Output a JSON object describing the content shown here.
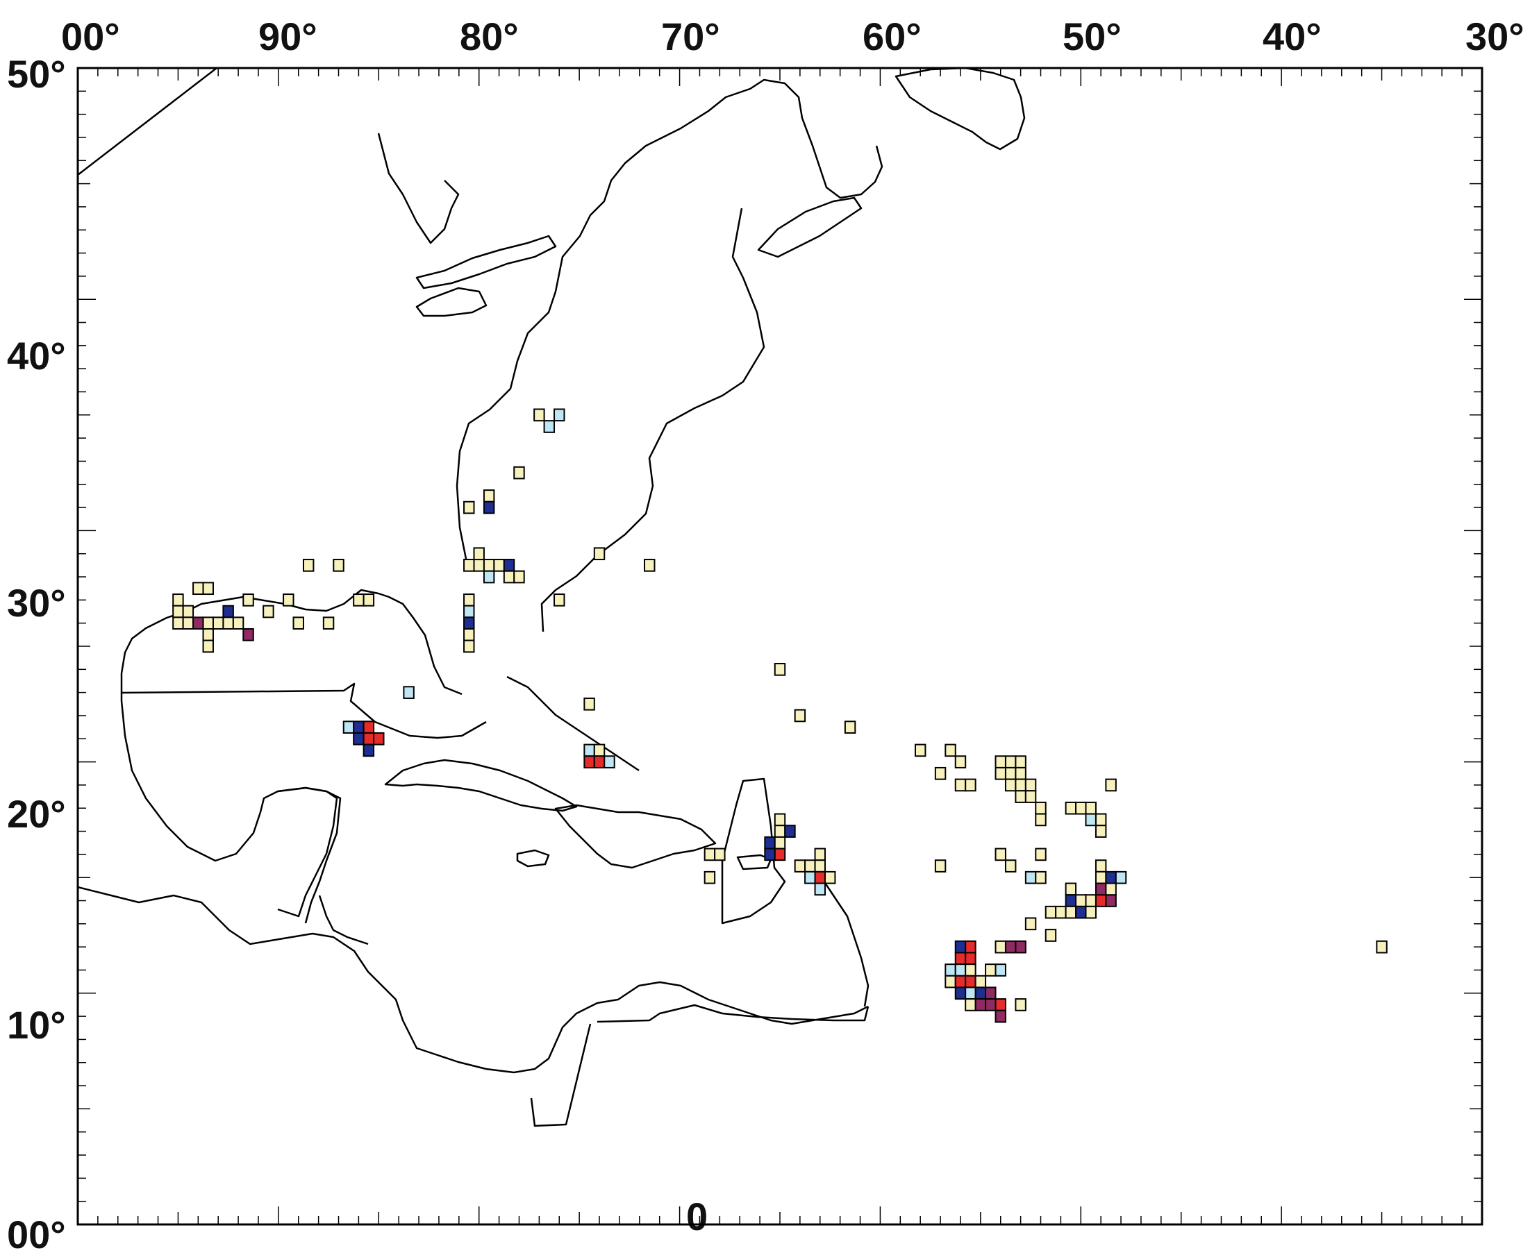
{
  "map": {
    "lon_range": [
      -100,
      -30
    ],
    "lat_range": [
      0,
      50
    ],
    "top_labels": [
      "00°",
      "90°",
      "80°",
      "70°",
      "60°",
      "50°",
      "40°",
      "30°"
    ],
    "left_labels": [
      "50°",
      "40°",
      "30°",
      "20°",
      "10°",
      "00°"
    ],
    "bottom_label": "0",
    "colors": {
      "cream": "#f7f1bd",
      "light_blue": "#bfe6f5",
      "dark_blue": "#1f2f91",
      "red": "#e62b2b",
      "purple": "#8f2a63",
      "outline": "#000000"
    },
    "cells": [
      {
        "lon": -77.0,
        "lat": 35.0,
        "c": "cream"
      },
      {
        "lon": -76.5,
        "lat": 34.5,
        "c": "light_blue"
      },
      {
        "lon": -76.0,
        "lat": 35.0,
        "c": "light_blue"
      },
      {
        "lon": -78.0,
        "lat": 32.5,
        "c": "cream"
      },
      {
        "lon": -79.5,
        "lat": 31.5,
        "c": "cream"
      },
      {
        "lon": -79.5,
        "lat": 31.0,
        "c": "dark_blue"
      },
      {
        "lon": -80.5,
        "lat": 31.0,
        "c": "cream"
      },
      {
        "lon": -80.5,
        "lat": 28.5,
        "c": "cream"
      },
      {
        "lon": -80.0,
        "lat": 28.5,
        "c": "cream"
      },
      {
        "lon": -79.5,
        "lat": 28.5,
        "c": "cream"
      },
      {
        "lon": -79.0,
        "lat": 28.5,
        "c": "cream"
      },
      {
        "lon": -78.5,
        "lat": 28.5,
        "c": "dark_blue"
      },
      {
        "lon": -80.0,
        "lat": 29.0,
        "c": "cream"
      },
      {
        "lon": -79.5,
        "lat": 28.0,
        "c": "light_blue"
      },
      {
        "lon": -78.5,
        "lat": 28.0,
        "c": "cream"
      },
      {
        "lon": -78.0,
        "lat": 28.0,
        "c": "cream"
      },
      {
        "lon": -74.0,
        "lat": 29.0,
        "c": "cream"
      },
      {
        "lon": -71.5,
        "lat": 28.5,
        "c": "cream"
      },
      {
        "lon": -76.0,
        "lat": 27.0,
        "c": "cream"
      },
      {
        "lon": -80.5,
        "lat": 27.0,
        "c": "cream"
      },
      {
        "lon": -80.5,
        "lat": 26.5,
        "c": "light_blue"
      },
      {
        "lon": -80.5,
        "lat": 26.0,
        "c": "dark_blue"
      },
      {
        "lon": -80.5,
        "lat": 25.5,
        "c": "cream"
      },
      {
        "lon": -80.5,
        "lat": 25.0,
        "c": "cream"
      },
      {
        "lon": -88.5,
        "lat": 28.5,
        "c": "cream"
      },
      {
        "lon": -87.0,
        "lat": 28.5,
        "c": "cream"
      },
      {
        "lon": -89.5,
        "lat": 27.0,
        "c": "cream"
      },
      {
        "lon": -86.0,
        "lat": 27.0,
        "c": "cream"
      },
      {
        "lon": -85.5,
        "lat": 27.0,
        "c": "cream"
      },
      {
        "lon": -90.5,
        "lat": 26.5,
        "c": "cream"
      },
      {
        "lon": -89.0,
        "lat": 26.0,
        "c": "cream"
      },
      {
        "lon": -87.5,
        "lat": 26.0,
        "c": "cream"
      },
      {
        "lon": -94.0,
        "lat": 27.5,
        "c": "cream"
      },
      {
        "lon": -93.5,
        "lat": 27.5,
        "c": "cream"
      },
      {
        "lon": -95.0,
        "lat": 27.0,
        "c": "cream"
      },
      {
        "lon": -91.5,
        "lat": 27.0,
        "c": "cream"
      },
      {
        "lon": -95.0,
        "lat": 26.5,
        "c": "cream"
      },
      {
        "lon": -94.5,
        "lat": 26.5,
        "c": "cream"
      },
      {
        "lon": -92.5,
        "lat": 26.5,
        "c": "dark_blue"
      },
      {
        "lon": -95.0,
        "lat": 26.0,
        "c": "cream"
      },
      {
        "lon": -94.5,
        "lat": 26.0,
        "c": "cream"
      },
      {
        "lon": -94.0,
        "lat": 26.0,
        "c": "purple"
      },
      {
        "lon": -93.5,
        "lat": 26.0,
        "c": "cream"
      },
      {
        "lon": -93.0,
        "lat": 26.0,
        "c": "cream"
      },
      {
        "lon": -92.5,
        "lat": 26.0,
        "c": "cream"
      },
      {
        "lon": -92.0,
        "lat": 26.0,
        "c": "cream"
      },
      {
        "lon": -93.5,
        "lat": 25.5,
        "c": "cream"
      },
      {
        "lon": -91.5,
        "lat": 25.5,
        "c": "purple"
      },
      {
        "lon": -93.5,
        "lat": 25.0,
        "c": "cream"
      },
      {
        "lon": -83.5,
        "lat": 23.0,
        "c": "light_blue"
      },
      {
        "lon": -86.5,
        "lat": 21.5,
        "c": "light_blue"
      },
      {
        "lon": -86.0,
        "lat": 21.5,
        "c": "dark_blue"
      },
      {
        "lon": -85.5,
        "lat": 21.5,
        "c": "red"
      },
      {
        "lon": -86.0,
        "lat": 21.0,
        "c": "dark_blue"
      },
      {
        "lon": -85.5,
        "lat": 21.0,
        "c": "red"
      },
      {
        "lon": -85.0,
        "lat": 21.0,
        "c": "red"
      },
      {
        "lon": -85.5,
        "lat": 20.5,
        "c": "dark_blue"
      },
      {
        "lon": -74.5,
        "lat": 22.5,
        "c": "cream"
      },
      {
        "lon": -74.5,
        "lat": 20.5,
        "c": "light_blue"
      },
      {
        "lon": -74.0,
        "lat": 20.5,
        "c": "cream"
      },
      {
        "lon": -74.5,
        "lat": 20.0,
        "c": "red"
      },
      {
        "lon": -74.0,
        "lat": 20.0,
        "c": "red"
      },
      {
        "lon": -73.5,
        "lat": 20.0,
        "c": "light_blue"
      },
      {
        "lon": -65.0,
        "lat": 24.0,
        "c": "cream"
      },
      {
        "lon": -64.0,
        "lat": 22.0,
        "c": "cream"
      },
      {
        "lon": -61.5,
        "lat": 21.5,
        "c": "cream"
      },
      {
        "lon": -68.5,
        "lat": 16.0,
        "c": "cream"
      },
      {
        "lon": -68.0,
        "lat": 16.0,
        "c": "cream"
      },
      {
        "lon": -68.5,
        "lat": 15.0,
        "c": "cream"
      },
      {
        "lon": -65.0,
        "lat": 17.5,
        "c": "cream"
      },
      {
        "lon": -65.0,
        "lat": 17.0,
        "c": "cream"
      },
      {
        "lon": -64.5,
        "lat": 17.0,
        "c": "dark_blue"
      },
      {
        "lon": -65.5,
        "lat": 16.5,
        "c": "dark_blue"
      },
      {
        "lon": -65.0,
        "lat": 16.5,
        "c": "cream"
      },
      {
        "lon": -65.5,
        "lat": 16.0,
        "c": "dark_blue"
      },
      {
        "lon": -65.0,
        "lat": 16.0,
        "c": "red"
      },
      {
        "lon": -63.0,
        "lat": 16.0,
        "c": "cream"
      },
      {
        "lon": -64.0,
        "lat": 15.5,
        "c": "cream"
      },
      {
        "lon": -63.5,
        "lat": 15.5,
        "c": "cream"
      },
      {
        "lon": -63.0,
        "lat": 15.5,
        "c": "cream"
      },
      {
        "lon": -63.5,
        "lat": 15.0,
        "c": "light_blue"
      },
      {
        "lon": -63.0,
        "lat": 15.0,
        "c": "red"
      },
      {
        "lon": -62.5,
        "lat": 15.0,
        "c": "cream"
      },
      {
        "lon": -63.0,
        "lat": 14.5,
        "c": "light_blue"
      },
      {
        "lon": -58.0,
        "lat": 20.5,
        "c": "cream"
      },
      {
        "lon": -56.5,
        "lat": 20.5,
        "c": "cream"
      },
      {
        "lon": -57.0,
        "lat": 19.5,
        "c": "cream"
      },
      {
        "lon": -56.0,
        "lat": 20.0,
        "c": "cream"
      },
      {
        "lon": -56.0,
        "lat": 19.0,
        "c": "cream"
      },
      {
        "lon": -55.5,
        "lat": 19.0,
        "c": "cream"
      },
      {
        "lon": -54.0,
        "lat": 20.0,
        "c": "cream"
      },
      {
        "lon": -53.5,
        "lat": 20.0,
        "c": "cream"
      },
      {
        "lon": -53.0,
        "lat": 20.0,
        "c": "cream"
      },
      {
        "lon": -54.0,
        "lat": 19.5,
        "c": "cream"
      },
      {
        "lon": -53.5,
        "lat": 19.5,
        "c": "cream"
      },
      {
        "lon": -53.0,
        "lat": 19.5,
        "c": "cream"
      },
      {
        "lon": -53.5,
        "lat": 19.0,
        "c": "cream"
      },
      {
        "lon": -53.0,
        "lat": 19.0,
        "c": "cream"
      },
      {
        "lon": -52.5,
        "lat": 19.0,
        "c": "cream"
      },
      {
        "lon": -53.0,
        "lat": 18.5,
        "c": "cream"
      },
      {
        "lon": -52.5,
        "lat": 18.5,
        "c": "cream"
      },
      {
        "lon": -52.0,
        "lat": 18.0,
        "c": "cream"
      },
      {
        "lon": -52.0,
        "lat": 17.5,
        "c": "cream"
      },
      {
        "lon": -50.5,
        "lat": 18.0,
        "c": "cream"
      },
      {
        "lon": -50.0,
        "lat": 18.0,
        "c": "cream"
      },
      {
        "lon": -49.5,
        "lat": 18.0,
        "c": "cream"
      },
      {
        "lon": -49.5,
        "lat": 17.5,
        "c": "light_blue"
      },
      {
        "lon": -49.0,
        "lat": 17.5,
        "c": "cream"
      },
      {
        "lon": -49.0,
        "lat": 17.0,
        "c": "cream"
      },
      {
        "lon": -48.5,
        "lat": 19.0,
        "c": "cream"
      },
      {
        "lon": -57.0,
        "lat": 15.5,
        "c": "cream"
      },
      {
        "lon": -54.0,
        "lat": 16.0,
        "c": "cream"
      },
      {
        "lon": -53.5,
        "lat": 15.5,
        "c": "cream"
      },
      {
        "lon": -52.0,
        "lat": 16.0,
        "c": "cream"
      },
      {
        "lon": -52.5,
        "lat": 15.0,
        "c": "light_blue"
      },
      {
        "lon": -52.0,
        "lat": 15.0,
        "c": "cream"
      },
      {
        "lon": -50.5,
        "lat": 14.5,
        "c": "cream"
      },
      {
        "lon": -50.5,
        "lat": 14.0,
        "c": "dark_blue"
      },
      {
        "lon": -50.0,
        "lat": 14.0,
        "c": "cream"
      },
      {
        "lon": -49.5,
        "lat": 14.0,
        "c": "cream"
      },
      {
        "lon": -49.0,
        "lat": 14.0,
        "c": "red"
      },
      {
        "lon": -48.5,
        "lat": 14.0,
        "c": "purple"
      },
      {
        "lon": -49.0,
        "lat": 15.5,
        "c": "cream"
      },
      {
        "lon": -49.0,
        "lat": 15.0,
        "c": "cream"
      },
      {
        "lon": -48.5,
        "lat": 15.0,
        "c": "dark_blue"
      },
      {
        "lon": -48.0,
        "lat": 15.0,
        "c": "light_blue"
      },
      {
        "lon": -49.0,
        "lat": 14.5,
        "c": "purple"
      },
      {
        "lon": -48.5,
        "lat": 14.5,
        "c": "cream"
      },
      {
        "lon": -51.5,
        "lat": 13.5,
        "c": "cream"
      },
      {
        "lon": -51.0,
        "lat": 13.5,
        "c": "cream"
      },
      {
        "lon": -50.5,
        "lat": 13.5,
        "c": "cream"
      },
      {
        "lon": -50.0,
        "lat": 13.5,
        "c": "dark_blue"
      },
      {
        "lon": -49.5,
        "lat": 13.5,
        "c": "cream"
      },
      {
        "lon": -52.5,
        "lat": 13.0,
        "c": "cream"
      },
      {
        "lon": -51.5,
        "lat": 12.5,
        "c": "cream"
      },
      {
        "lon": -35.0,
        "lat": 12.0,
        "c": "cream"
      },
      {
        "lon": -56.0,
        "lat": 12.0,
        "c": "dark_blue"
      },
      {
        "lon": -55.5,
        "lat": 12.0,
        "c": "red"
      },
      {
        "lon": -54.0,
        "lat": 12.0,
        "c": "cream"
      },
      {
        "lon": -53.5,
        "lat": 12.0,
        "c": "purple"
      },
      {
        "lon": -53.0,
        "lat": 12.0,
        "c": "purple"
      },
      {
        "lon": -56.0,
        "lat": 11.5,
        "c": "red"
      },
      {
        "lon": -55.5,
        "lat": 11.5,
        "c": "red"
      },
      {
        "lon": -56.5,
        "lat": 11.0,
        "c": "light_blue"
      },
      {
        "lon": -56.0,
        "lat": 11.0,
        "c": "light_blue"
      },
      {
        "lon": -55.5,
        "lat": 11.0,
        "c": "cream"
      },
      {
        "lon": -54.5,
        "lat": 11.0,
        "c": "cream"
      },
      {
        "lon": -54.0,
        "lat": 11.0,
        "c": "light_blue"
      },
      {
        "lon": -56.5,
        "lat": 10.5,
        "c": "cream"
      },
      {
        "lon": -56.0,
        "lat": 10.5,
        "c": "red"
      },
      {
        "lon": -55.5,
        "lat": 10.5,
        "c": "red"
      },
      {
        "lon": -55.0,
        "lat": 10.5,
        "c": "cream"
      },
      {
        "lon": -56.0,
        "lat": 10.0,
        "c": "dark_blue"
      },
      {
        "lon": -55.5,
        "lat": 10.0,
        "c": "light_blue"
      },
      {
        "lon": -55.0,
        "lat": 10.0,
        "c": "dark_blue"
      },
      {
        "lon": -54.5,
        "lat": 10.0,
        "c": "purple"
      },
      {
        "lon": -55.5,
        "lat": 9.5,
        "c": "cream"
      },
      {
        "lon": -55.0,
        "lat": 9.5,
        "c": "purple"
      },
      {
        "lon": -54.5,
        "lat": 9.5,
        "c": "purple"
      },
      {
        "lon": -54.0,
        "lat": 9.5,
        "c": "red"
      },
      {
        "lon": -53.0,
        "lat": 9.5,
        "c": "cream"
      },
      {
        "lon": -54.0,
        "lat": 9.0,
        "c": "purple"
      }
    ]
  }
}
